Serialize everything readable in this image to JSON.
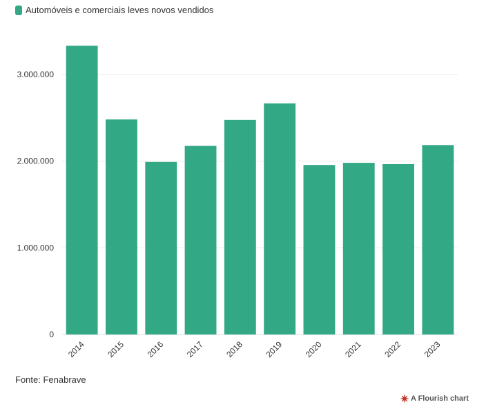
{
  "legend": {
    "label": "Automóveis e comerciais leves novos vendidos"
  },
  "colors": {
    "bar": "#32a885",
    "grid": "#e9e9e9",
    "axis_text": "#333333",
    "flourish": "#c0392b"
  },
  "source": "Fonte: Fenabrave",
  "credit": {
    "label": "A Flourish chart",
    "icon": "flourish-logo-icon"
  },
  "chart_data": {
    "type": "bar",
    "categories": [
      "2014",
      "2015",
      "2016",
      "2017",
      "2018",
      "2019",
      "2020",
      "2021",
      "2022",
      "2023"
    ],
    "series": [
      {
        "name": "Automóveis e comerciais leves novos vendidos",
        "values": [
          3330000,
          2480000,
          1990000,
          2175000,
          2475000,
          2665000,
          1955000,
          1980000,
          1965000,
          2185000
        ]
      }
    ],
    "yticks": [
      "0",
      "1.000.000",
      "2.000.000",
      "3.000.000"
    ],
    "ytick_values": [
      0,
      1000000,
      2000000,
      3000000
    ],
    "ylim": [
      0,
      3500000
    ],
    "grid": true,
    "legend_position": "top-left",
    "xlabel": "",
    "ylabel": ""
  }
}
